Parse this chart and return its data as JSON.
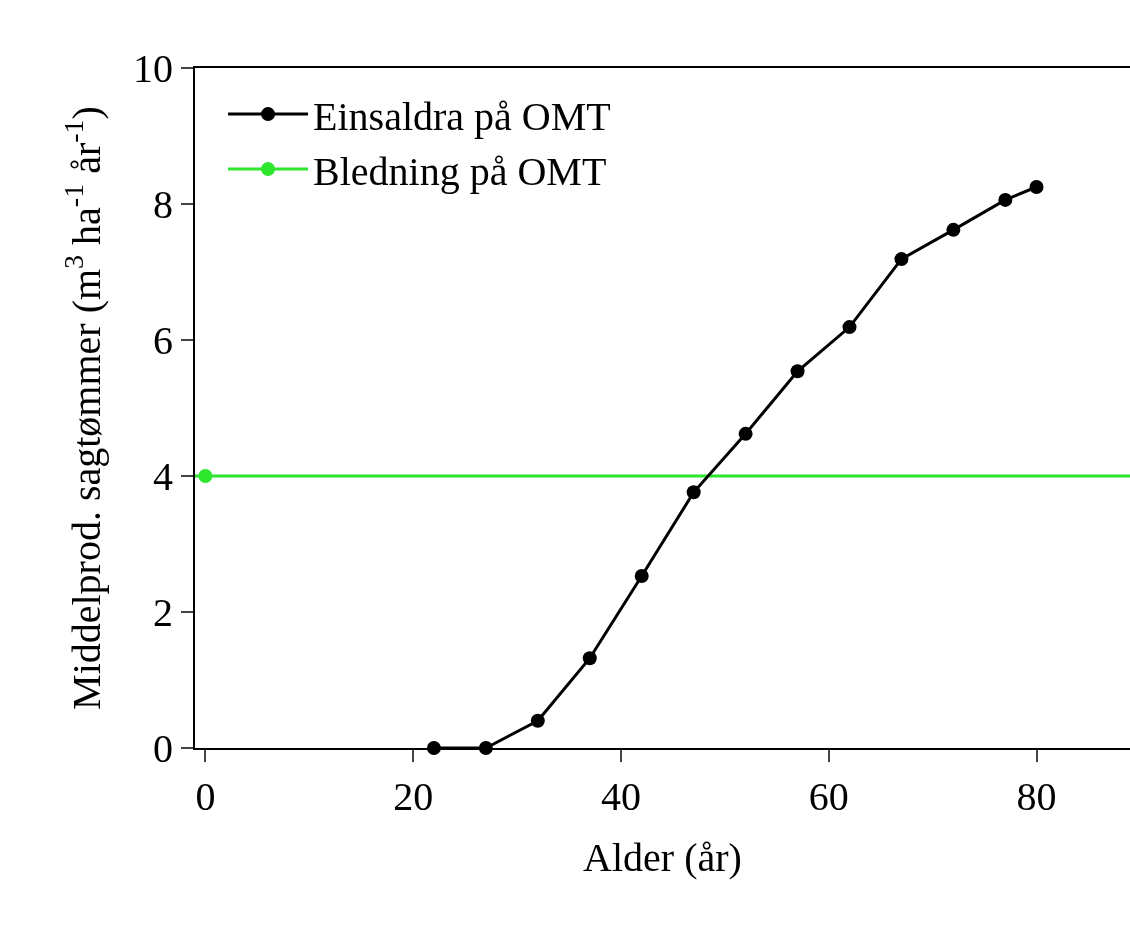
{
  "chart_data": {
    "type": "line",
    "xlabel": "Alder (år)",
    "ylabel": "Middelprod. sagtømmer (m$^{3}$ ha$^{-1}$ år$^{-1}$)",
    "xlim": [
      -1,
      89
    ],
    "xticks": [
      0,
      20,
      40,
      60,
      80
    ],
    "ylim": [
      0,
      10
    ],
    "yticks": [
      0,
      2,
      4,
      6,
      8,
      10
    ],
    "series": [
      {
        "name": "Einsaldra på OMT",
        "color": "#000000",
        "x": [
          22,
          27,
          32,
          37,
          42,
          47,
          52,
          57,
          62,
          67,
          72,
          77,
          80
        ],
        "values": [
          0,
          0,
          0.4,
          1.32,
          2.53,
          3.76,
          4.62,
          5.54,
          6.19,
          7.19,
          7.62,
          8.06,
          8.25
        ]
      },
      {
        "name": "Bledning på OMT",
        "color": "#2ee62e",
        "x": [
          0
        ],
        "values": [
          4
        ]
      }
    ],
    "ref_lines": [
      {
        "axis": "y",
        "value": 4,
        "color": "#2ee62e"
      }
    ],
    "marker": "circle",
    "line_style": "solid",
    "grid": false,
    "legend": "top left"
  }
}
